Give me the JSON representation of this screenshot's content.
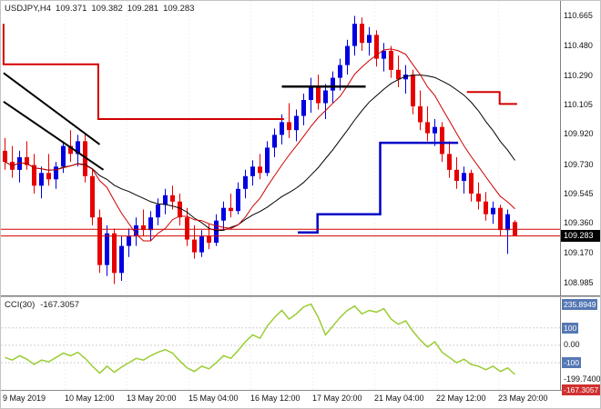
{
  "window": {
    "title": "USDJPY,H4",
    "ohlc": {
      "open": "109.371",
      "high": "109.382",
      "low": "109.281",
      "close": "109.283"
    }
  },
  "price_axis": {
    "labels": [
      "110.665",
      "110.480",
      "110.290",
      "110.105",
      "109.920",
      "109.730",
      "109.545",
      "109.360",
      "109.170",
      "108.985"
    ],
    "current_price": "109.283"
  },
  "time_axis": {
    "labels": [
      "9 May 2019",
      "10 May 12:00",
      "13 May 20:00",
      "15 May 04:00",
      "16 May 12:00",
      "17 May 20:00",
      "21 May 04:00",
      "22 May 12:00",
      "23 May 20:00"
    ]
  },
  "indicator": {
    "name": "CCI(30)",
    "value": "-167.3057",
    "axis_labels": [
      {
        "text": "235.8949",
        "style": "blue"
      },
      {
        "text": "100",
        "style": "blue"
      },
      {
        "text": "0.00",
        "style": "plain"
      },
      {
        "text": "-100",
        "style": "blue"
      },
      {
        "text": "-199.7400",
        "style": "plain"
      }
    ],
    "current_badge": {
      "text": "-167.3057",
      "style": "red"
    }
  },
  "colors": {
    "bull": "#0000e0",
    "bear": "#e60000",
    "ma_fast": "#cc0000",
    "ma_slow": "#000000",
    "step_red": "#d40000",
    "step_blue": "#0000c8",
    "bid_line": "#d40000",
    "cci_line": "#9acd32",
    "badge_blue": "#5578b4",
    "badge_red": "#d03030",
    "price_badge_bg": "#000000"
  },
  "chart_data": {
    "type": "candlestick",
    "symbol": "USDJPY",
    "timeframe": "H4",
    "title": "USDJPY,H4",
    "price_range": [
      108.92,
      110.73
    ],
    "candle_spacing": 8,
    "ma_fast_period": 8,
    "ma_slow_period": 18,
    "candles": [
      [
        109.82,
        109.9,
        109.7,
        109.75
      ],
      [
        109.75,
        109.85,
        109.65,
        109.7
      ],
      [
        109.7,
        109.82,
        109.62,
        109.78
      ],
      [
        109.78,
        109.88,
        109.7,
        109.73
      ],
      [
        109.73,
        109.8,
        109.55,
        109.6
      ],
      [
        109.6,
        109.72,
        109.52,
        109.68
      ],
      [
        109.68,
        109.8,
        109.6,
        109.64
      ],
      [
        109.64,
        109.75,
        109.58,
        109.72
      ],
      [
        109.72,
        109.88,
        109.68,
        109.85
      ],
      [
        109.85,
        109.95,
        109.75,
        109.8
      ],
      [
        109.8,
        109.92,
        109.72,
        109.88
      ],
      [
        109.88,
        109.93,
        109.62,
        109.66
      ],
      [
        109.66,
        109.7,
        109.35,
        109.4
      ],
      [
        109.4,
        109.45,
        109.05,
        109.1
      ],
      [
        109.1,
        109.35,
        109.03,
        109.3
      ],
      [
        109.3,
        109.33,
        108.98,
        109.05
      ],
      [
        109.05,
        109.28,
        109.0,
        109.22
      ],
      [
        109.22,
        109.33,
        109.15,
        109.28
      ],
      [
        109.28,
        109.4,
        109.22,
        109.35
      ],
      [
        109.35,
        109.45,
        109.28,
        109.32
      ],
      [
        109.32,
        109.44,
        109.25,
        109.4
      ],
      [
        109.4,
        109.52,
        109.35,
        109.48
      ],
      [
        109.48,
        109.58,
        109.42,
        109.54
      ],
      [
        109.54,
        109.6,
        109.45,
        109.5
      ],
      [
        109.5,
        109.55,
        109.35,
        109.4
      ],
      [
        109.4,
        109.46,
        109.22,
        109.26
      ],
      [
        109.26,
        109.35,
        109.14,
        109.18
      ],
      [
        109.18,
        109.32,
        109.15,
        109.28
      ],
      [
        109.28,
        109.36,
        109.2,
        109.24
      ],
      [
        109.24,
        109.42,
        109.22,
        109.38
      ],
      [
        109.38,
        109.5,
        109.32,
        109.46
      ],
      [
        109.46,
        109.55,
        109.4,
        109.44
      ],
      [
        109.44,
        109.62,
        109.42,
        109.58
      ],
      [
        109.58,
        109.7,
        109.52,
        109.66
      ],
      [
        109.66,
        109.76,
        109.6,
        109.72
      ],
      [
        109.72,
        109.8,
        109.64,
        109.68
      ],
      [
        109.68,
        109.88,
        109.66,
        109.84
      ],
      [
        109.84,
        109.96,
        109.78,
        109.92
      ],
      [
        109.92,
        110.05,
        109.86,
        110.0
      ],
      [
        110.0,
        110.12,
        109.9,
        109.95
      ],
      [
        109.95,
        110.08,
        109.88,
        110.04
      ],
      [
        110.04,
        110.18,
        109.98,
        110.14
      ],
      [
        110.14,
        110.28,
        110.06,
        110.22
      ],
      [
        110.22,
        110.3,
        110.08,
        110.12
      ],
      [
        110.12,
        110.24,
        110.02,
        110.2
      ],
      [
        110.2,
        110.32,
        110.12,
        110.28
      ],
      [
        110.28,
        110.4,
        110.2,
        110.36
      ],
      [
        110.36,
        110.52,
        110.3,
        110.48
      ],
      [
        110.48,
        110.67,
        110.42,
        110.62
      ],
      [
        110.62,
        110.66,
        110.45,
        110.5
      ],
      [
        110.5,
        110.6,
        110.42,
        110.55
      ],
      [
        110.55,
        110.58,
        110.35,
        110.4
      ],
      [
        110.4,
        110.5,
        110.32,
        110.45
      ],
      [
        110.45,
        110.48,
        110.28,
        110.33
      ],
      [
        110.33,
        110.42,
        110.22,
        110.27
      ],
      [
        110.27,
        110.36,
        110.18,
        110.3
      ],
      [
        110.3,
        110.33,
        110.05,
        110.1
      ],
      [
        110.1,
        110.2,
        109.95,
        110.0
      ],
      [
        110.0,
        110.1,
        109.88,
        109.93
      ],
      [
        109.93,
        110.02,
        109.85,
        109.97
      ],
      [
        109.97,
        110.0,
        109.75,
        109.8
      ],
      [
        109.8,
        109.88,
        109.65,
        109.7
      ],
      [
        109.7,
        109.78,
        109.58,
        109.63
      ],
      [
        109.63,
        109.72,
        109.55,
        109.68
      ],
      [
        109.68,
        109.7,
        109.5,
        109.55
      ],
      [
        109.55,
        109.62,
        109.45,
        109.5
      ],
      [
        109.5,
        109.56,
        109.38,
        109.42
      ],
      [
        109.42,
        109.5,
        109.36,
        109.46
      ],
      [
        109.46,
        109.48,
        109.28,
        109.32
      ],
      [
        109.32,
        109.45,
        109.17,
        109.42
      ],
      [
        109.371,
        109.382,
        109.281,
        109.283
      ]
    ],
    "overlays": {
      "red_steps": [
        [
          [
            -0.2,
            110.62
          ],
          [
            -0.2,
            110.365
          ],
          [
            12.8,
            110.365
          ],
          [
            12.8,
            110.02
          ],
          [
            38.3,
            110.02
          ]
        ],
        [
          [
            63.4,
            110.19
          ],
          [
            67.9,
            110.19
          ],
          [
            67.9,
            110.115
          ],
          [
            70.3,
            110.115
          ]
        ]
      ],
      "blue_step": [
        [
          40.2,
          109.305
        ],
        [
          42.9,
          109.305
        ],
        [
          42.9,
          109.42
        ],
        [
          51.5,
          109.42
        ],
        [
          51.5,
          109.87
        ],
        [
          62.2,
          109.87
        ]
      ],
      "black_trendlines": [
        [
          [
            -0.2,
            110.31
          ],
          [
            13.0,
            109.86
          ]
        ],
        [
          [
            -0.2,
            110.13
          ],
          [
            13.5,
            109.7
          ]
        ]
      ],
      "black_hline": [
        [
          38.0,
          110.225
        ],
        [
          49.5,
          110.225
        ]
      ],
      "red_hlines": [
        109.325
      ],
      "bid_line": 109.283
    },
    "cci": {
      "period": 30,
      "range": [
        -235,
        265
      ],
      "levels": [
        100,
        0,
        -100
      ],
      "values": [
        -70,
        -85,
        -60,
        -80,
        -110,
        -85,
        -95,
        -70,
        -45,
        -60,
        -40,
        -75,
        -120,
        -160,
        -120,
        -155,
        -125,
        -100,
        -75,
        -85,
        -60,
        -40,
        -25,
        -45,
        -90,
        -130,
        -150,
        -120,
        -135,
        -100,
        -60,
        -75,
        -30,
        20,
        60,
        40,
        110,
        160,
        200,
        150,
        180,
        220,
        235.9,
        160,
        60,
        110,
        160,
        200,
        225,
        180,
        200,
        190,
        210,
        150,
        120,
        140,
        80,
        30,
        -10,
        20,
        -40,
        -70,
        -100,
        -80,
        -110,
        -120,
        -140,
        -120,
        -150,
        -130,
        -167.3
      ]
    }
  }
}
